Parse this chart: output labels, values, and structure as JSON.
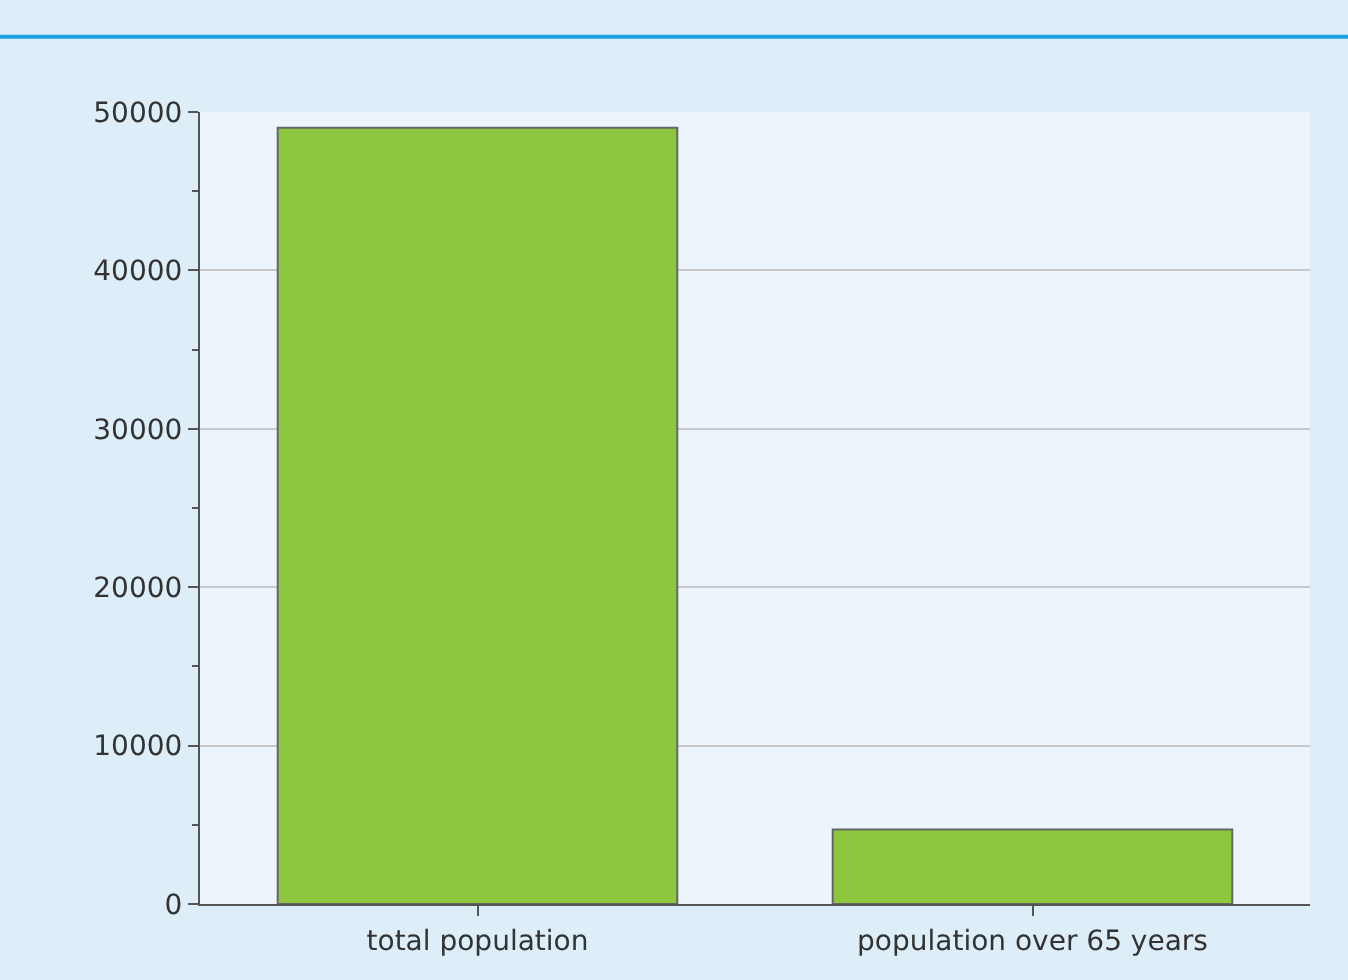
{
  "chart_data": {
    "type": "bar",
    "categories": [
      "total population",
      "population over 65 years"
    ],
    "values": [
      49000,
      4700
    ],
    "color": "#8dc63f",
    "ylim": [
      0,
      50000
    ],
    "yticks": [
      0,
      10000,
      20000,
      30000,
      40000,
      50000
    ],
    "grid": "y"
  }
}
